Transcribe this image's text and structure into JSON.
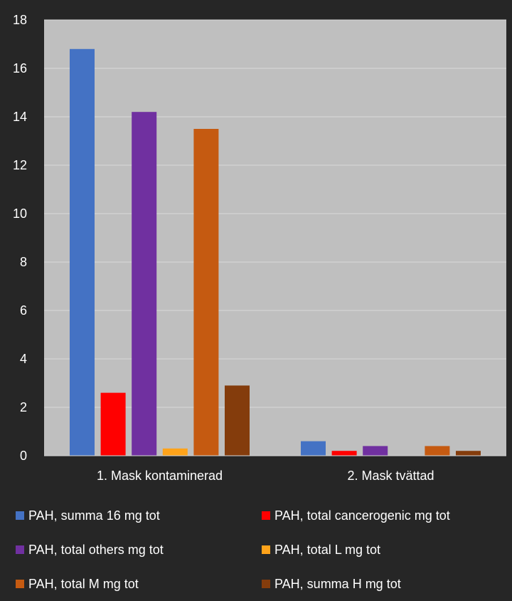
{
  "chart_data": {
    "type": "bar",
    "categories": [
      "1. Mask kontaminerad",
      "2. Mask tvättad"
    ],
    "series": [
      {
        "name": "PAH, summa 16 mg tot",
        "color": "#4472c4",
        "values": [
          16.8,
          0.6
        ]
      },
      {
        "name": "PAH, total cancerogenic mg tot",
        "color": "#ff0000",
        "values": [
          2.6,
          0.2
        ]
      },
      {
        "name": "PAH, total others mg tot",
        "color": "#7030a0",
        "values": [
          14.2,
          0.4
        ]
      },
      {
        "name": "PAH, total L mg tot",
        "color": "#ffa31a",
        "values": [
          0.3,
          0.0
        ]
      },
      {
        "name": "PAH, total M mg tot",
        "color": "#c55a11",
        "values": [
          13.5,
          0.4
        ]
      },
      {
        "name": "PAH, summa H mg tot",
        "color": "#843c0c",
        "values": [
          2.9,
          0.2
        ]
      }
    ],
    "ylim": [
      0,
      18
    ],
    "yticks": [
      0,
      2,
      4,
      6,
      8,
      10,
      12,
      14,
      16,
      18
    ],
    "grid": true,
    "legend": "bottom",
    "plot_background": "#bfbfbf",
    "page_background": "#262626"
  }
}
